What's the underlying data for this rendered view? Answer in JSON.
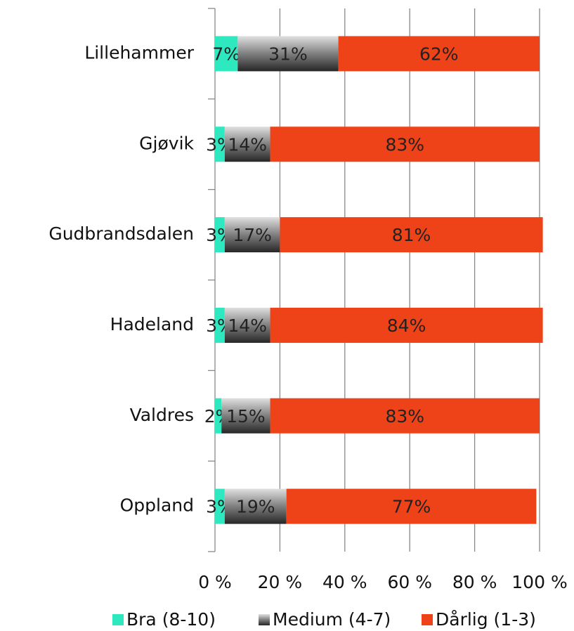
{
  "chart_data": {
    "type": "stacked-bar-horizontal",
    "categories": [
      "Lillehammer",
      "Gjøvik",
      "Gudbrandsdalen",
      "Hadeland",
      "Valdres",
      "Oppland"
    ],
    "series": [
      {
        "name": "Bra (8-10)",
        "color": "#2ee8c0",
        "values": [
          7,
          3,
          3,
          3,
          2,
          3
        ],
        "value_labels": [
          "7%",
          "3%",
          "3%",
          "3%",
          "2%",
          "3%"
        ]
      },
      {
        "name": "Medium (4-7)",
        "color": "#7f7f7f",
        "values": [
          31,
          14,
          17,
          14,
          15,
          19
        ],
        "value_labels": [
          "31%",
          "14%",
          "17%",
          "14%",
          "15%",
          "19%"
        ]
      },
      {
        "name": "Dårlig (1-3)",
        "color": "#ee4318",
        "values": [
          62,
          83,
          81,
          84,
          83,
          77
        ],
        "value_labels": [
          "62%",
          "83%",
          "81%",
          "84%",
          "83%",
          "77%"
        ]
      }
    ],
    "xlim": [
      0,
      100
    ],
    "xticks": [
      {
        "value": 0,
        "label": "0 %"
      },
      {
        "value": 20,
        "label": "20 %"
      },
      {
        "value": 40,
        "label": "40 %"
      },
      {
        "value": 60,
        "label": "60 %"
      },
      {
        "value": 80,
        "label": "80 %"
      },
      {
        "value": 100,
        "label": "100 %"
      }
    ],
    "grid": true,
    "legend": "bottom"
  }
}
